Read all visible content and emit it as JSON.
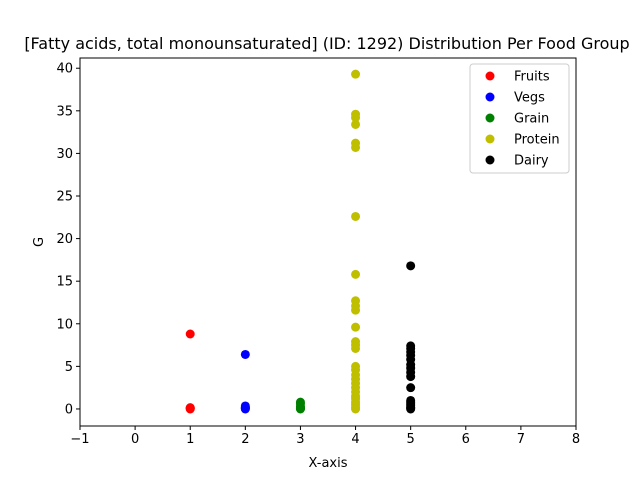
{
  "chart_data": {
    "type": "scatter",
    "title": "[Fatty acids, total monounsaturated] (ID: 1292) Distribution Per Food Group",
    "xlabel": "X-axis",
    "ylabel": "G",
    "xlim": [
      -1,
      8
    ],
    "ylim": [
      -2,
      41.2
    ],
    "xticks": [
      -1,
      0,
      1,
      2,
      3,
      4,
      5,
      6,
      7,
      8
    ],
    "yticks": [
      0,
      5,
      10,
      15,
      20,
      25,
      30,
      35,
      40
    ],
    "grid": false,
    "legend_position": "top-right",
    "series": [
      {
        "name": "Fruits",
        "color": "#ff0000",
        "x": 1,
        "values": [
          0,
          0.05,
          0.1,
          0.15,
          8.8
        ]
      },
      {
        "name": "Vegs",
        "color": "#0000ff",
        "x": 2,
        "values": [
          0,
          0.05,
          0.1,
          0.2,
          0.35,
          6.4
        ]
      },
      {
        "name": "Grain",
        "color": "#008000",
        "x": 3,
        "values": [
          0,
          0.05,
          0.1,
          0.2,
          0.3,
          0.6,
          0.8
        ]
      },
      {
        "name": "Protein",
        "color": "#bfbf00",
        "x": 4,
        "values": [
          0,
          0.2,
          0.5,
          0.8,
          1.2,
          1.5,
          2.0,
          2.5,
          3.0,
          3.5,
          4.0,
          4.6,
          5.0,
          7.1,
          7.5,
          7.9,
          9.6,
          11.6,
          12.1,
          12.7,
          15.8,
          22.6,
          30.7,
          31.2,
          33.4,
          34.2,
          34.6,
          39.3
        ]
      },
      {
        "name": "Dairy",
        "color": "#000000",
        "x": 5,
        "values": [
          0,
          0.1,
          0.2,
          0.4,
          0.6,
          0.8,
          1.0,
          2.5,
          3.8,
          4.3,
          4.8,
          5.2,
          5.8,
          6.3,
          6.7,
          7.1,
          7.4,
          16.8
        ]
      }
    ]
  }
}
